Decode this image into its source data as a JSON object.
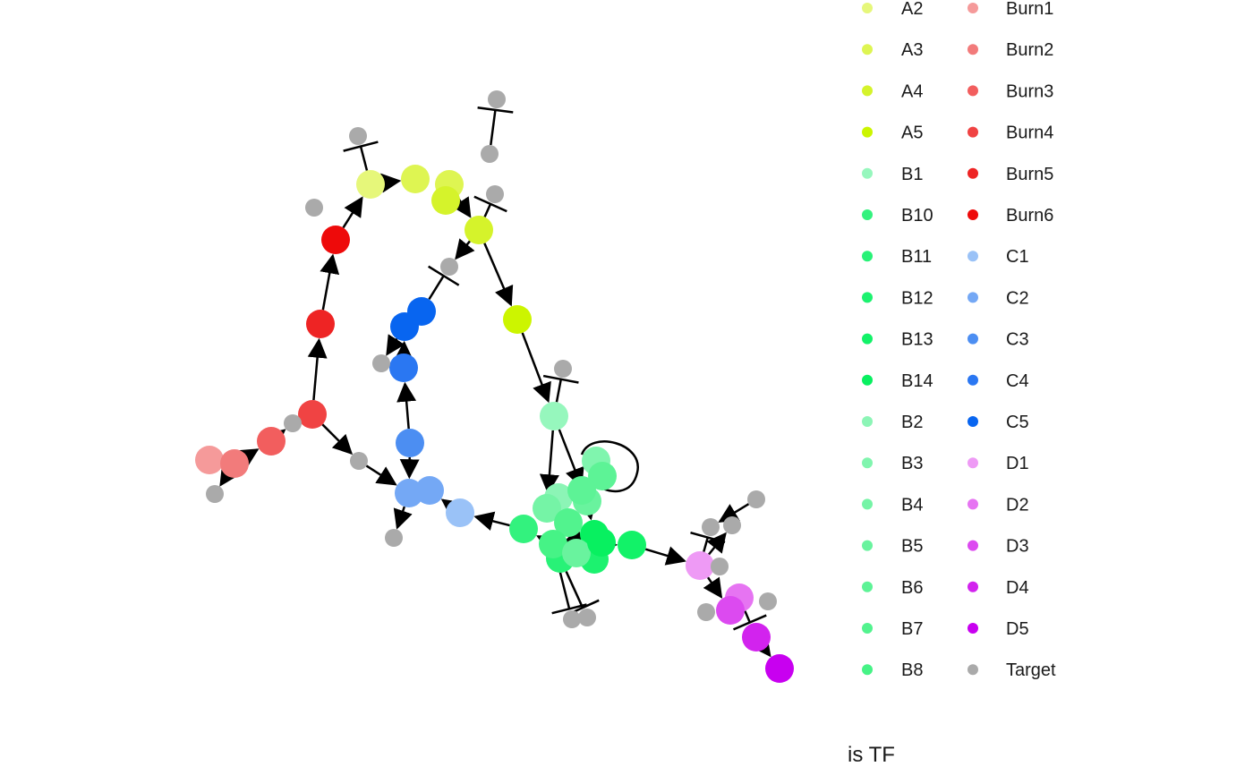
{
  "legend": {
    "title": "is TF",
    "items": [
      {
        "label": "A2",
        "color": "#E6F77A"
      },
      {
        "label": "A3",
        "color": "#DEF552"
      },
      {
        "label": "A4",
        "color": "#D5F32B"
      },
      {
        "label": "A5",
        "color": "#CCF500"
      },
      {
        "label": "B1",
        "color": "#96F7BD"
      },
      {
        "label": "B10",
        "color": "#33F27E"
      },
      {
        "label": "B11",
        "color": "#28F277"
      },
      {
        "label": "B12",
        "color": "#1CF26F"
      },
      {
        "label": "B13",
        "color": "#12F268"
      },
      {
        "label": "B14",
        "color": "#08F060"
      },
      {
        "label": "B2",
        "color": "#8CF5B6"
      },
      {
        "label": "B3",
        "color": "#80F5AE"
      },
      {
        "label": "B4",
        "color": "#75F4A6"
      },
      {
        "label": "B5",
        "color": "#69F39E"
      },
      {
        "label": "B6",
        "color": "#5DF396"
      },
      {
        "label": "B7",
        "color": "#52F38E"
      },
      {
        "label": "B8",
        "color": "#46F386"
      },
      {
        "label": "Burn1",
        "color": "#F59A9A"
      },
      {
        "label": "Burn2",
        "color": "#F27B7B"
      },
      {
        "label": "Burn3",
        "color": "#F25E5E"
      },
      {
        "label": "Burn4",
        "color": "#F04343"
      },
      {
        "label": "Burn5",
        "color": "#EE2424"
      },
      {
        "label": "Burn6",
        "color": "#EE0A0A"
      },
      {
        "label": "C1",
        "color": "#9AC2F7"
      },
      {
        "label": "C2",
        "color": "#74A8F5"
      },
      {
        "label": "C3",
        "color": "#4C8EF2"
      },
      {
        "label": "C4",
        "color": "#2A77F2"
      },
      {
        "label": "C5",
        "color": "#0865F0"
      },
      {
        "label": "D1",
        "color": "#EE9AF5"
      },
      {
        "label": "D2",
        "color": "#E674F2"
      },
      {
        "label": "D3",
        "color": "#DC4AF0"
      },
      {
        "label": "D4",
        "color": "#D223EE"
      },
      {
        "label": "D5",
        "color": "#C800F0"
      },
      {
        "label": "Target",
        "color": "#AAAAAA"
      }
    ]
  }
}
